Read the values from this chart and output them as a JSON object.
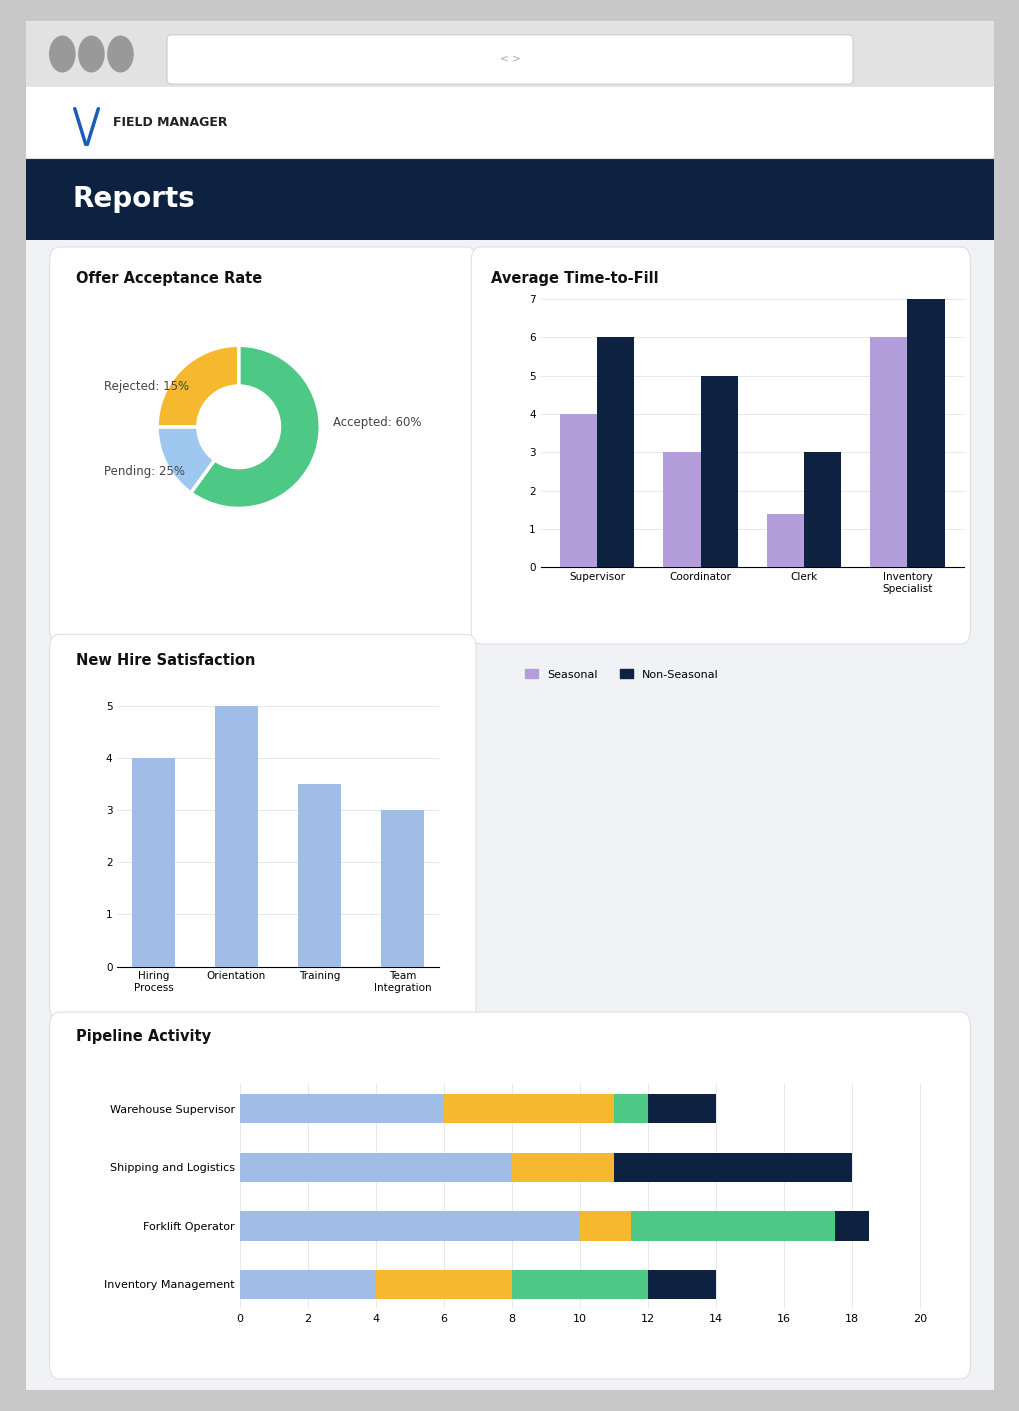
{
  "nav_text": "FIELD MANAGER",
  "nav_text_color": "#1a1a1a",
  "header_bg": "#0d2240",
  "header_text": "Reports",
  "header_text_color": "#ffffff",
  "donut_title": "Offer Acceptance Rate",
  "donut_values": [
    60,
    15,
    25
  ],
  "donut_labels": [
    "Accepted: 60%",
    "Rejected: 15%",
    "Pending: 25%"
  ],
  "donut_colors": [
    "#4dc985",
    "#9ec8f0",
    "#f5b82e"
  ],
  "time_fill_title": "Average Time-to-Fill",
  "time_fill_categories": [
    "Supervisor",
    "Coordinator",
    "Clerk",
    "Inventory\nSpecialist"
  ],
  "time_fill_seasonal": [
    4,
    3,
    1.4,
    6
  ],
  "time_fill_nonseasonal": [
    6,
    5,
    3,
    7
  ],
  "time_fill_seasonal_color": "#b39ddb",
  "time_fill_nonseasonal_color": "#0d2240",
  "time_fill_ylim": [
    0,
    7
  ],
  "time_fill_yticks": [
    0,
    1,
    2,
    3,
    4,
    5,
    6,
    7
  ],
  "hire_title": "New Hire Satisfaction",
  "hire_categories": [
    "Hiring\nProcess",
    "Orientation",
    "Training",
    "Team\nIntegration"
  ],
  "hire_values": [
    4,
    5,
    3.5,
    3
  ],
  "hire_color": "#a0bde8",
  "hire_ylim": [
    0,
    5
  ],
  "hire_yticks": [
    0,
    1,
    2,
    3,
    4,
    5
  ],
  "pipeline_title": "Pipeline Activity",
  "pipeline_categories": [
    "Warehouse Supervisor",
    "Shipping and Logistics",
    "Forklift Operator",
    "Inventory Management"
  ],
  "pipeline_online_lead": [
    6,
    8,
    10,
    4
  ],
  "pipeline_alumni": [
    5,
    3,
    1.5,
    4
  ],
  "pipeline_agency": [
    1,
    0,
    6,
    4
  ],
  "pipeline_silver": [
    2,
    7,
    1,
    2
  ],
  "pipeline_online_color": "#a0bde8",
  "pipeline_alumni_color": "#f5b82e",
  "pipeline_agency_color": "#4dc985",
  "pipeline_silver_color": "#0d2240",
  "pipeline_xlim": [
    0,
    21
  ],
  "pipeline_xticks": [
    0,
    2,
    4,
    6,
    8,
    10,
    12,
    14,
    16,
    18,
    20
  ]
}
